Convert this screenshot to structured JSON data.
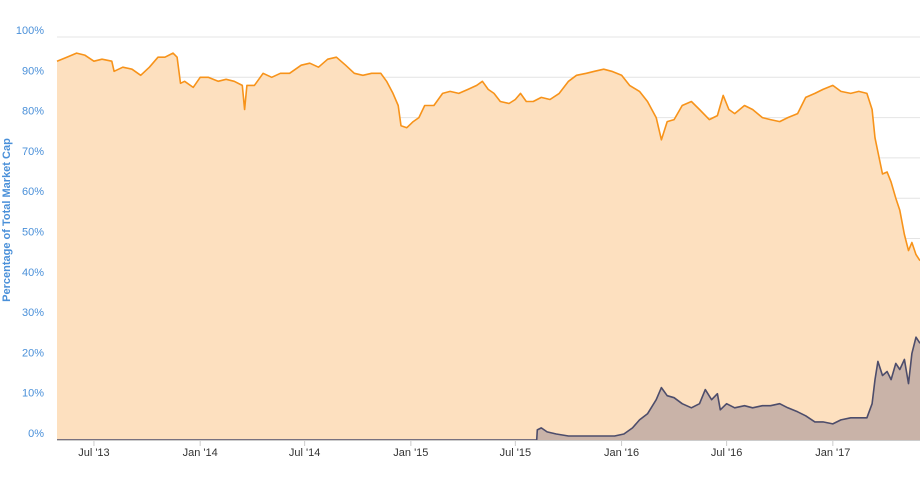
{
  "chart_data": {
    "type": "area",
    "title": "",
    "xlabel": "",
    "ylabel": "Percentage of Total Market Cap",
    "ylim": [
      0,
      100
    ],
    "yticks": [
      "0%",
      "10%",
      "20%",
      "30%",
      "40%",
      "50%",
      "60%",
      "70%",
      "80%",
      "90%",
      "100%"
    ],
    "xticks": [
      {
        "date": "2013-07-01",
        "label": "Jul '13"
      },
      {
        "date": "2014-01-01",
        "label": "Jan '14"
      },
      {
        "date": "2014-07-01",
        "label": "Jul '14"
      },
      {
        "date": "2015-01-01",
        "label": "Jan '15"
      },
      {
        "date": "2015-07-01",
        "label": "Jul '15"
      },
      {
        "date": "2016-01-01",
        "label": "Jan '16"
      },
      {
        "date": "2016-07-01",
        "label": "Jul '16"
      },
      {
        "date": "2017-01-01",
        "label": "Jan '17"
      }
    ],
    "xlim": [
      "2013-04-28",
      "2017-06-01"
    ],
    "grid": true,
    "series": [
      {
        "color": "#f7931a",
        "fill": "#fde0bf",
        "points": [
          [
            "2013-04-28",
            94.0
          ],
          [
            "2013-05-15",
            95.0
          ],
          [
            "2013-06-01",
            96.0
          ],
          [
            "2013-06-15",
            95.5
          ],
          [
            "2013-07-01",
            94.0
          ],
          [
            "2013-07-15",
            94.5
          ],
          [
            "2013-08-01",
            94.0
          ],
          [
            "2013-08-05",
            91.5
          ],
          [
            "2013-08-20",
            92.5
          ],
          [
            "2013-09-05",
            92.0
          ],
          [
            "2013-09-20",
            90.5
          ],
          [
            "2013-10-05",
            92.5
          ],
          [
            "2013-10-20",
            95.0
          ],
          [
            "2013-11-01",
            95.0
          ],
          [
            "2013-11-15",
            96.0
          ],
          [
            "2013-11-22",
            95.0
          ],
          [
            "2013-11-28",
            88.5
          ],
          [
            "2013-12-05",
            89.0
          ],
          [
            "2013-12-20",
            87.5
          ],
          [
            "2014-01-01",
            90.0
          ],
          [
            "2014-01-15",
            90.0
          ],
          [
            "2014-02-01",
            89.0
          ],
          [
            "2014-02-15",
            89.5
          ],
          [
            "2014-03-01",
            89.0
          ],
          [
            "2014-03-15",
            88.0
          ],
          [
            "2014-03-19",
            82.0
          ],
          [
            "2014-03-23",
            88.0
          ],
          [
            "2014-04-05",
            88.0
          ],
          [
            "2014-04-20",
            91.0
          ],
          [
            "2014-05-05",
            90.0
          ],
          [
            "2014-05-20",
            91.0
          ],
          [
            "2014-06-05",
            91.0
          ],
          [
            "2014-06-25",
            93.0
          ],
          [
            "2014-07-10",
            93.5
          ],
          [
            "2014-07-25",
            92.5
          ],
          [
            "2014-08-10",
            94.5
          ],
          [
            "2014-08-25",
            95.0
          ],
          [
            "2014-09-10",
            93.0
          ],
          [
            "2014-09-25",
            91.0
          ],
          [
            "2014-10-10",
            90.5
          ],
          [
            "2014-10-25",
            91.0
          ],
          [
            "2014-11-10",
            91.0
          ],
          [
            "2014-11-20",
            89.0
          ],
          [
            "2014-12-01",
            86.0
          ],
          [
            "2014-12-10",
            83.0
          ],
          [
            "2014-12-15",
            78.0
          ],
          [
            "2014-12-25",
            77.5
          ],
          [
            "2015-01-05",
            79.0
          ],
          [
            "2015-01-15",
            80.0
          ],
          [
            "2015-01-25",
            83.0
          ],
          [
            "2015-02-10",
            83.0
          ],
          [
            "2015-02-25",
            86.0
          ],
          [
            "2015-03-10",
            86.5
          ],
          [
            "2015-03-25",
            86.0
          ],
          [
            "2015-04-10",
            87.0
          ],
          [
            "2015-04-25",
            88.0
          ],
          [
            "2015-05-05",
            89.0
          ],
          [
            "2015-05-15",
            87.0
          ],
          [
            "2015-05-25",
            86.0
          ],
          [
            "2015-06-05",
            84.0
          ],
          [
            "2015-06-20",
            83.5
          ],
          [
            "2015-07-01",
            84.5
          ],
          [
            "2015-07-10",
            86.0
          ],
          [
            "2015-07-20",
            84.0
          ],
          [
            "2015-08-01",
            84.0
          ],
          [
            "2015-08-15",
            85.0
          ],
          [
            "2015-08-30",
            84.5
          ],
          [
            "2015-09-15",
            86.0
          ],
          [
            "2015-10-01",
            89.0
          ],
          [
            "2015-10-15",
            90.5
          ],
          [
            "2015-11-01",
            91.0
          ],
          [
            "2015-11-15",
            91.5
          ],
          [
            "2015-12-01",
            92.0
          ],
          [
            "2015-12-15",
            91.5
          ],
          [
            "2016-01-01",
            90.5
          ],
          [
            "2016-01-15",
            88.0
          ],
          [
            "2016-02-01",
            86.5
          ],
          [
            "2016-02-15",
            84.0
          ],
          [
            "2016-03-01",
            80.0
          ],
          [
            "2016-03-10",
            74.5
          ],
          [
            "2016-03-20",
            79.0
          ],
          [
            "2016-04-01",
            79.5
          ],
          [
            "2016-04-15",
            83.0
          ],
          [
            "2016-05-01",
            84.0
          ],
          [
            "2016-05-15",
            82.0
          ],
          [
            "2016-06-01",
            79.5
          ],
          [
            "2016-06-15",
            80.5
          ],
          [
            "2016-06-25",
            85.5
          ],
          [
            "2016-07-05",
            82.0
          ],
          [
            "2016-07-15",
            81.0
          ],
          [
            "2016-08-01",
            83.0
          ],
          [
            "2016-08-15",
            82.0
          ],
          [
            "2016-09-01",
            80.0
          ],
          [
            "2016-09-15",
            79.5
          ],
          [
            "2016-10-01",
            79.0
          ],
          [
            "2016-10-15",
            80.0
          ],
          [
            "2016-11-01",
            81.0
          ],
          [
            "2016-11-15",
            85.0
          ],
          [
            "2016-12-01",
            86.0
          ],
          [
            "2016-12-15",
            87.0
          ],
          [
            "2017-01-01",
            88.0
          ],
          [
            "2017-01-15",
            86.5
          ],
          [
            "2017-02-01",
            86.0
          ],
          [
            "2017-02-15",
            86.5
          ],
          [
            "2017-03-01",
            86.0
          ],
          [
            "2017-03-10",
            82.0
          ],
          [
            "2017-03-15",
            75.0
          ],
          [
            "2017-03-20",
            71.5
          ],
          [
            "2017-03-28",
            66.0
          ],
          [
            "2017-04-05",
            66.5
          ],
          [
            "2017-04-12",
            64.0
          ],
          [
            "2017-04-20",
            60.0
          ],
          [
            "2017-04-27",
            57.0
          ],
          [
            "2017-05-05",
            51.0
          ],
          [
            "2017-05-12",
            47.0
          ],
          [
            "2017-05-18",
            49.0
          ],
          [
            "2017-05-25",
            46.0
          ],
          [
            "2017-06-01",
            44.5
          ]
        ]
      },
      {
        "color": "#4d4d6b",
        "fill": "#c9b3a8",
        "points": [
          [
            "2013-04-28",
            0.0
          ],
          [
            "2015-08-07",
            0.0
          ],
          [
            "2015-08-08",
            2.5
          ],
          [
            "2015-08-15",
            3.0
          ],
          [
            "2015-08-25",
            2.0
          ],
          [
            "2015-09-10",
            1.5
          ],
          [
            "2015-10-01",
            1.0
          ],
          [
            "2015-11-01",
            1.0
          ],
          [
            "2015-12-01",
            1.0
          ],
          [
            "2015-12-20",
            1.0
          ],
          [
            "2016-01-05",
            1.5
          ],
          [
            "2016-01-20",
            3.0
          ],
          [
            "2016-02-01",
            5.0
          ],
          [
            "2016-02-15",
            6.5
          ],
          [
            "2016-03-01",
            10.0
          ],
          [
            "2016-03-10",
            13.0
          ],
          [
            "2016-03-20",
            11.0
          ],
          [
            "2016-04-01",
            10.5
          ],
          [
            "2016-04-15",
            9.0
          ],
          [
            "2016-05-01",
            8.0
          ],
          [
            "2016-05-15",
            9.0
          ],
          [
            "2016-05-25",
            12.5
          ],
          [
            "2016-06-05",
            10.0
          ],
          [
            "2016-06-15",
            11.5
          ],
          [
            "2016-06-20",
            7.5
          ],
          [
            "2016-07-01",
            9.0
          ],
          [
            "2016-07-15",
            8.0
          ],
          [
            "2016-08-01",
            8.5
          ],
          [
            "2016-08-15",
            8.0
          ],
          [
            "2016-09-01",
            8.5
          ],
          [
            "2016-09-15",
            8.5
          ],
          [
            "2016-10-01",
            9.0
          ],
          [
            "2016-10-15",
            8.0
          ],
          [
            "2016-11-01",
            7.0
          ],
          [
            "2016-11-15",
            6.0
          ],
          [
            "2016-12-01",
            4.5
          ],
          [
            "2016-12-15",
            4.5
          ],
          [
            "2017-01-01",
            4.0
          ],
          [
            "2017-01-15",
            5.0
          ],
          [
            "2017-02-01",
            5.5
          ],
          [
            "2017-02-15",
            5.5
          ],
          [
            "2017-03-01",
            5.5
          ],
          [
            "2017-03-10",
            9.0
          ],
          [
            "2017-03-15",
            15.0
          ],
          [
            "2017-03-20",
            19.5
          ],
          [
            "2017-03-28",
            16.0
          ],
          [
            "2017-04-05",
            17.0
          ],
          [
            "2017-04-12",
            15.0
          ],
          [
            "2017-04-20",
            19.0
          ],
          [
            "2017-04-27",
            17.5
          ],
          [
            "2017-05-05",
            20.0
          ],
          [
            "2017-05-12",
            14.0
          ],
          [
            "2017-05-18",
            21.5
          ],
          [
            "2017-05-25",
            25.5
          ],
          [
            "2017-06-01",
            24.0
          ]
        ]
      }
    ]
  }
}
